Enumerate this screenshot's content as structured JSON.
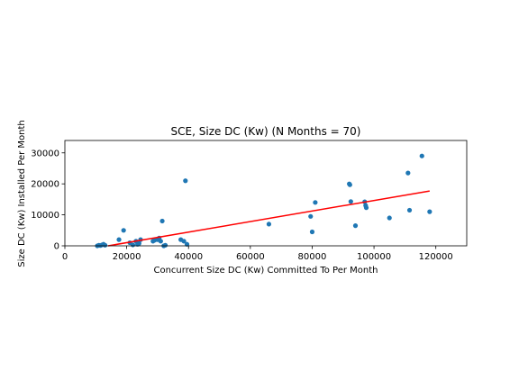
{
  "chart_data": {
    "type": "scatter",
    "title": "SCE, Size DC (Kw) (N Months = 70)",
    "xlabel": "Concurrent Size DC (Kw) Committed To Per Month",
    "ylabel": "Size DC (Kw) Installed Per Month",
    "xlim": [
      0,
      130000
    ],
    "ylim": [
      0,
      34000
    ],
    "xticks": [
      0,
      20000,
      40000,
      60000,
      80000,
      100000,
      120000
    ],
    "xtick_labels": [
      "0",
      "20000",
      "40000",
      "60000",
      "80000",
      "100000",
      "120000"
    ],
    "yticks": [
      0,
      10000,
      20000,
      30000
    ],
    "ytick_labels": [
      "0",
      "10000",
      "20000",
      "30000"
    ],
    "grid": false,
    "legend": "none",
    "point_color": "#1f77b4",
    "line_color": "#ff0000",
    "series": [
      {
        "x": [
          10500,
          11000,
          11500,
          12000,
          12500,
          13000,
          17500,
          19000,
          21000,
          22000,
          23000,
          23500,
          24000,
          24500,
          28500,
          29000,
          30000,
          30500,
          31000,
          31500,
          32000,
          32500,
          37500,
          38500,
          39000,
          39500,
          66000,
          79500,
          80000,
          81000,
          92000,
          92200,
          92500,
          94000,
          97000,
          97300,
          97500,
          105000,
          111000,
          111500,
          115500,
          118000
        ],
        "y": [
          0,
          200,
          100,
          300,
          500,
          200,
          2000,
          5000,
          1000,
          300,
          1500,
          500,
          800,
          2000,
          1500,
          1800,
          2000,
          2500,
          1500,
          8000,
          0,
          200,
          2000,
          1500,
          21000,
          500,
          7000,
          9500,
          4500,
          14000,
          20000,
          19700,
          14300,
          6500,
          14200,
          13000,
          12300,
          9000,
          23500,
          11500,
          29000,
          11000
        ]
      }
    ],
    "trendline": {
      "x": [
        14000,
        118000
      ],
      "y": [
        0,
        17700
      ]
    }
  }
}
